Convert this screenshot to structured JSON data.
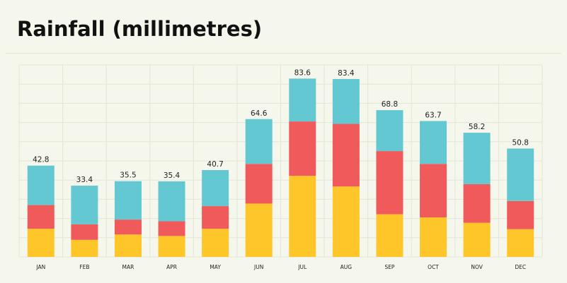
{
  "title": "Rainfall (millimetres)",
  "colors": {
    "background": "#f5f6ec",
    "grid": "#e3e5d8",
    "bottom_segment": "#ffc629",
    "middle_segment": "#f05a5b",
    "top_segment": "#64c8d2",
    "text": "#222222"
  },
  "chart_data": {
    "type": "bar",
    "stacked": true,
    "title": "Rainfall (millimetres)",
    "xlabel": "",
    "ylabel": "",
    "ylim": [
      0,
      90
    ],
    "grid": true,
    "legend": "none",
    "categories": [
      "JAN",
      "FEB",
      "MAR",
      "APR",
      "MAY",
      "JUN",
      "JUL",
      "AUG",
      "SEP",
      "OCT",
      "NOV",
      "DEC"
    ],
    "totals": [
      42.8,
      33.4,
      35.5,
      35.4,
      40.7,
      64.6,
      83.6,
      83.4,
      68.8,
      63.7,
      58.2,
      50.8
    ],
    "series": [
      {
        "values": [
          13.2,
          8.0,
          10.5,
          9.8,
          13.2,
          25.0,
          38.0,
          33.0,
          20.0,
          18.5,
          16.0,
          13.0
        ]
      },
      {
        "values": [
          11.1,
          7.3,
          7.0,
          6.9,
          10.6,
          18.6,
          25.5,
          29.4,
          29.6,
          25.1,
          18.1,
          13.2
        ]
      },
      {
        "values": [
          18.5,
          18.1,
          18.0,
          18.7,
          16.9,
          21.0,
          20.1,
          21.0,
          19.2,
          20.1,
          24.1,
          24.6
        ]
      }
    ]
  }
}
